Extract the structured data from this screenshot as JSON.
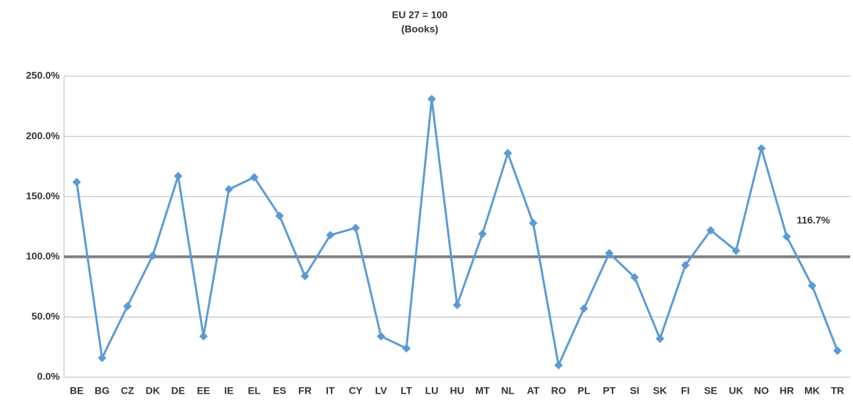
{
  "chart_data": {
    "type": "line",
    "title": "EU 27 = 100",
    "subtitle": "(Books)",
    "categories": [
      "BE",
      "BG",
      "CZ",
      "DK",
      "DE",
      "EE",
      "IE",
      "EL",
      "ES",
      "FR",
      "IT",
      "CY",
      "LV",
      "LT",
      "LU",
      "HU",
      "MT",
      "NL",
      "AT",
      "RO",
      "PL",
      "PT",
      "SI",
      "SK",
      "FI",
      "SE",
      "UK",
      "NO",
      "HR",
      "MK",
      "TR"
    ],
    "series": [
      {
        "name": "Books",
        "color": "#5b9bd5",
        "values": [
          162,
          16,
          59,
          101,
          167,
          34,
          156,
          166,
          134,
          84,
          118,
          124,
          34,
          24,
          231,
          60,
          119,
          186,
          128,
          10,
          57,
          103,
          83,
          32,
          93,
          122,
          105,
          190,
          116.7,
          76,
          22
        ],
        "value_labels": [
          null,
          null,
          null,
          null,
          null,
          null,
          null,
          null,
          null,
          null,
          null,
          null,
          null,
          null,
          null,
          null,
          null,
          null,
          null,
          null,
          null,
          null,
          null,
          null,
          null,
          null,
          null,
          null,
          "116.7%",
          null,
          null
        ]
      }
    ],
    "ylim": [
      0,
      250
    ],
    "yticks": [
      {
        "value": 0,
        "label": "0.0%"
      },
      {
        "value": 50,
        "label": "50.0%"
      },
      {
        "value": 100,
        "label": "100.0%"
      },
      {
        "value": 150,
        "label": "150.0%"
      },
      {
        "value": 200,
        "label": "200.0%"
      },
      {
        "value": 250,
        "label": "250.0%"
      }
    ],
    "grid": true,
    "reference_line": {
      "value": 100,
      "color": "#808080"
    }
  }
}
